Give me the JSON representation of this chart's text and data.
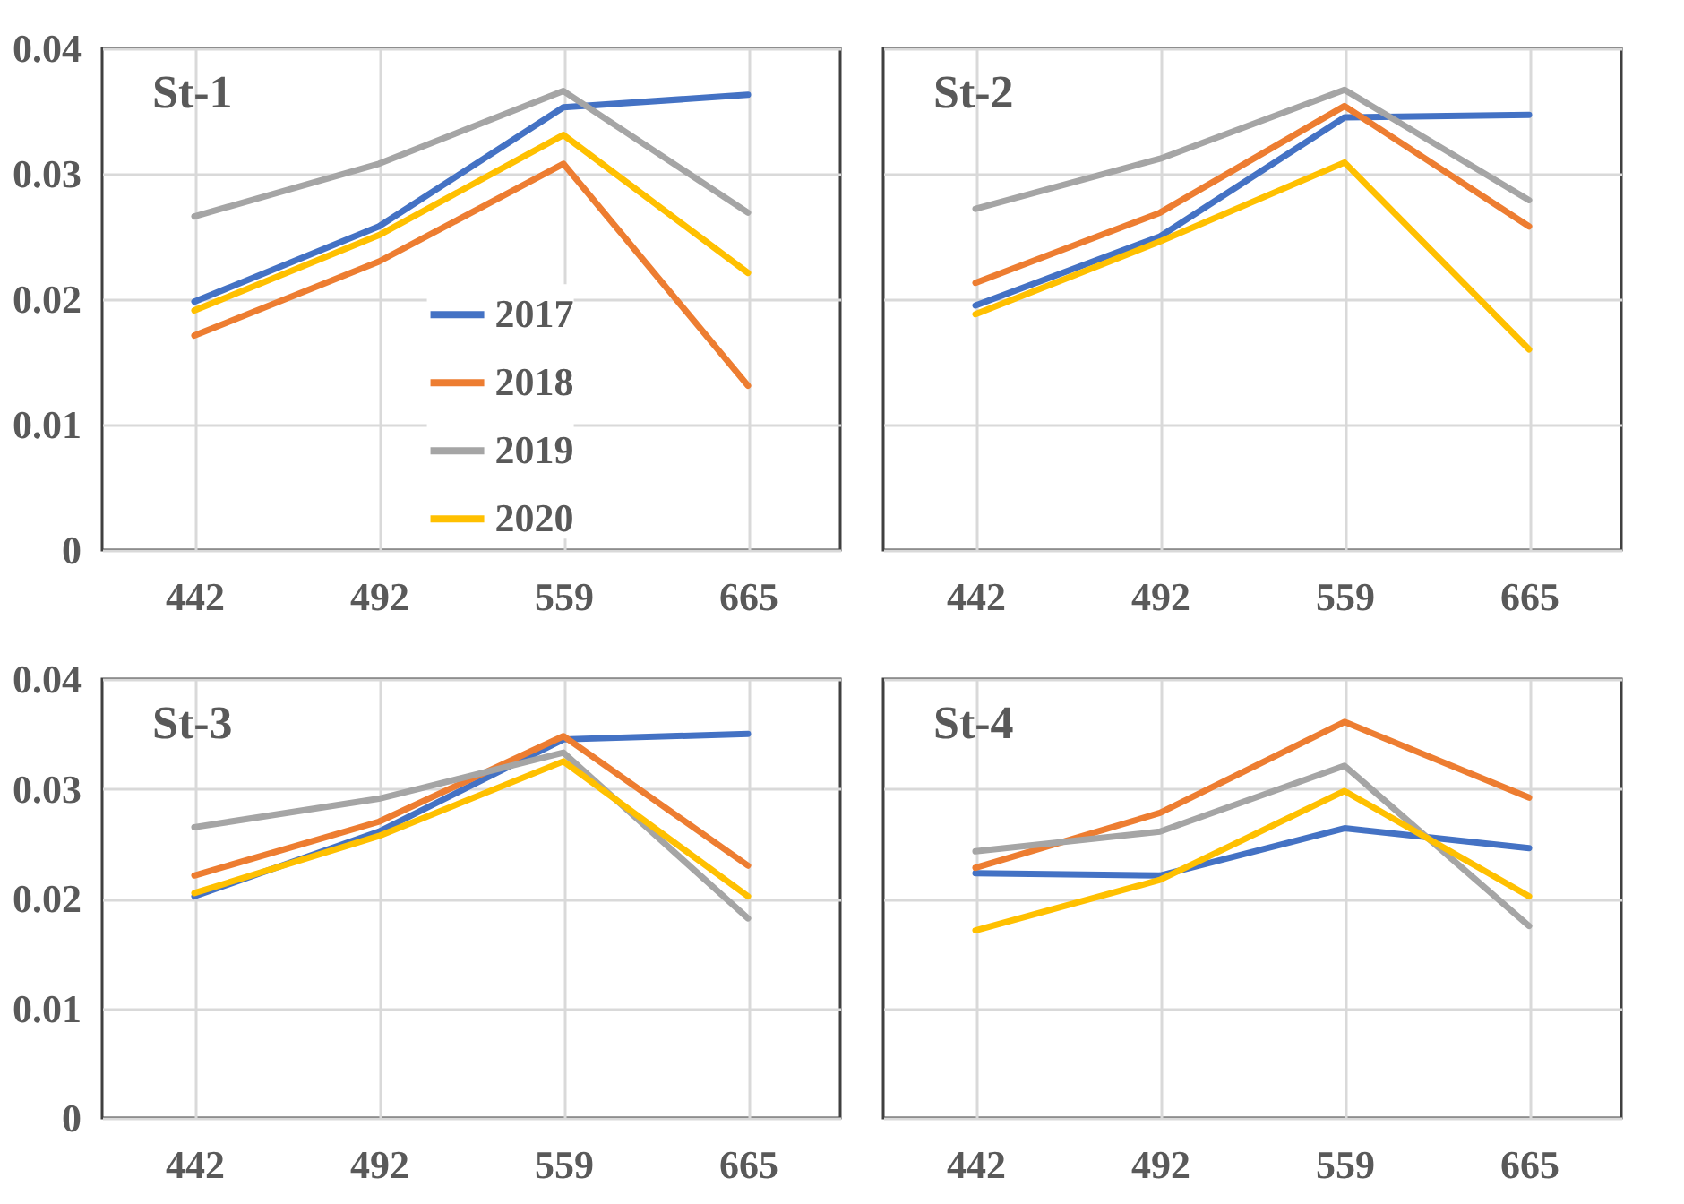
{
  "chart_data": [
    {
      "type": "line",
      "title": "St-1",
      "categories": [
        "442",
        "492",
        "559",
        "665"
      ],
      "ylim": [
        0,
        0.04
      ],
      "yticks": [
        0,
        0.01,
        0.02,
        0.03,
        0.04
      ],
      "grid": true,
      "legend": "bottom",
      "line_style": "solid",
      "series": [
        {
          "name": "2017",
          "color": "#4472c4",
          "values": [
            0.0198,
            0.0258,
            0.0353,
            0.0363
          ]
        },
        {
          "name": "2018",
          "color": "#ed7d31",
          "values": [
            0.0171,
            0.023,
            0.0308,
            0.0131
          ]
        },
        {
          "name": "2019",
          "color": "#a5a5a5",
          "values": [
            0.0266,
            0.0308,
            0.0366,
            0.0269
          ]
        },
        {
          "name": "2020",
          "color": "#ffc000",
          "values": [
            0.0191,
            0.0251,
            0.0331,
            0.0221
          ]
        }
      ]
    },
    {
      "type": "line",
      "title": "St-2",
      "categories": [
        "442",
        "492",
        "559",
        "665"
      ],
      "ylim": [
        0,
        0.04
      ],
      "yticks": [
        0,
        0.01,
        0.02,
        0.03,
        0.04
      ],
      "grid": true,
      "legend": false,
      "tick_labels": "x",
      "line_style": "solid",
      "series": [
        {
          "color": "#4472c4",
          "values": [
            0.0195,
            0.025,
            0.0345,
            0.0347
          ]
        },
        {
          "color": "#ed7d31",
          "values": [
            0.0213,
            0.0269,
            0.0354,
            0.0258
          ]
        },
        {
          "color": "#a5a5a5",
          "values": [
            0.0272,
            0.0312,
            0.0367,
            0.0279
          ]
        },
        {
          "color": "#ffc000",
          "values": [
            0.0188,
            0.0246,
            0.0309,
            0.016
          ]
        }
      ]
    },
    {
      "type": "line",
      "title": "St-3",
      "categories": [
        "442",
        "492",
        "559",
        "665"
      ],
      "ylim": [
        0,
        0.04
      ],
      "yticks": [
        0,
        0.01,
        0.02,
        0.03,
        0.04
      ],
      "grid": true,
      "legend": false,
      "line_style": "solid",
      "series": [
        {
          "color": "#4472c4",
          "values": [
            0.0202,
            0.0261,
            0.0345,
            0.035
          ]
        },
        {
          "color": "#ed7d31",
          "values": [
            0.0221,
            0.027,
            0.0348,
            0.023
          ]
        },
        {
          "color": "#a5a5a5",
          "values": [
            0.0265,
            0.0291,
            0.0333,
            0.0182
          ]
        },
        {
          "color": "#ffc000",
          "values": [
            0.0205,
            0.0257,
            0.0325,
            0.0202
          ]
        }
      ]
    },
    {
      "type": "line",
      "title": "St-4",
      "categories": [
        "442",
        "492",
        "559",
        "665"
      ],
      "ylim": [
        0,
        0.04
      ],
      "yticks": [
        0,
        0.01,
        0.02,
        0.03,
        0.04
      ],
      "grid": true,
      "legend": false,
      "tick_labels": "x",
      "line_style": "solid",
      "series": [
        {
          "color": "#4472c4",
          "values": [
            0.0223,
            0.0221,
            0.0264,
            0.0246
          ]
        },
        {
          "color": "#ed7d31",
          "values": [
            0.0228,
            0.0278,
            0.0361,
            0.0292
          ]
        },
        {
          "color": "#a5a5a5",
          "values": [
            0.0243,
            0.0261,
            0.0321,
            0.0175
          ]
        },
        {
          "color": "#ffc000",
          "values": [
            0.0171,
            0.0217,
            0.0298,
            0.0202
          ]
        }
      ]
    }
  ]
}
